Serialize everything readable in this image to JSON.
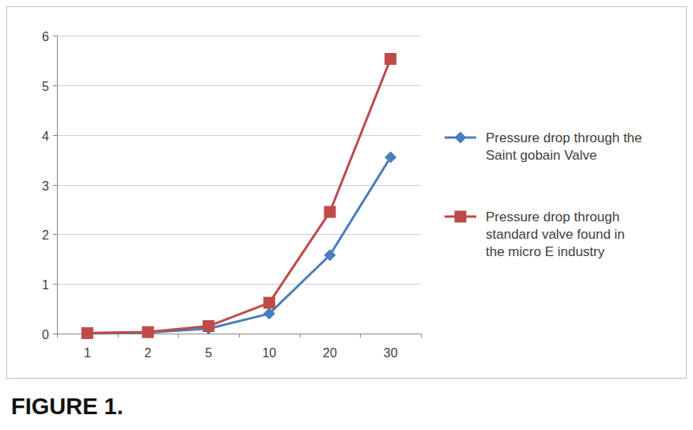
{
  "chart_data": {
    "type": "line",
    "title": "FIGURE 1.",
    "categories": [
      "1",
      "2",
      "5",
      "10",
      "20",
      "30"
    ],
    "series": [
      {
        "name": "Pressure drop through the Saint gobain Valve",
        "color": "#4a7ebb",
        "marker": "diamond",
        "values": [
          0.0,
          0.02,
          0.1,
          0.4,
          1.58,
          3.55
        ]
      },
      {
        "name": "Pressure drop through standard valve found in the micro E industry",
        "color": "#be4b48",
        "marker": "square",
        "values": [
          0.01,
          0.03,
          0.15,
          0.62,
          2.45,
          5.53
        ]
      }
    ],
    "ylim": [
      0,
      6
    ],
    "yticks": [
      0,
      1,
      2,
      3,
      4,
      5,
      6
    ],
    "grid": true,
    "legend": "right"
  }
}
